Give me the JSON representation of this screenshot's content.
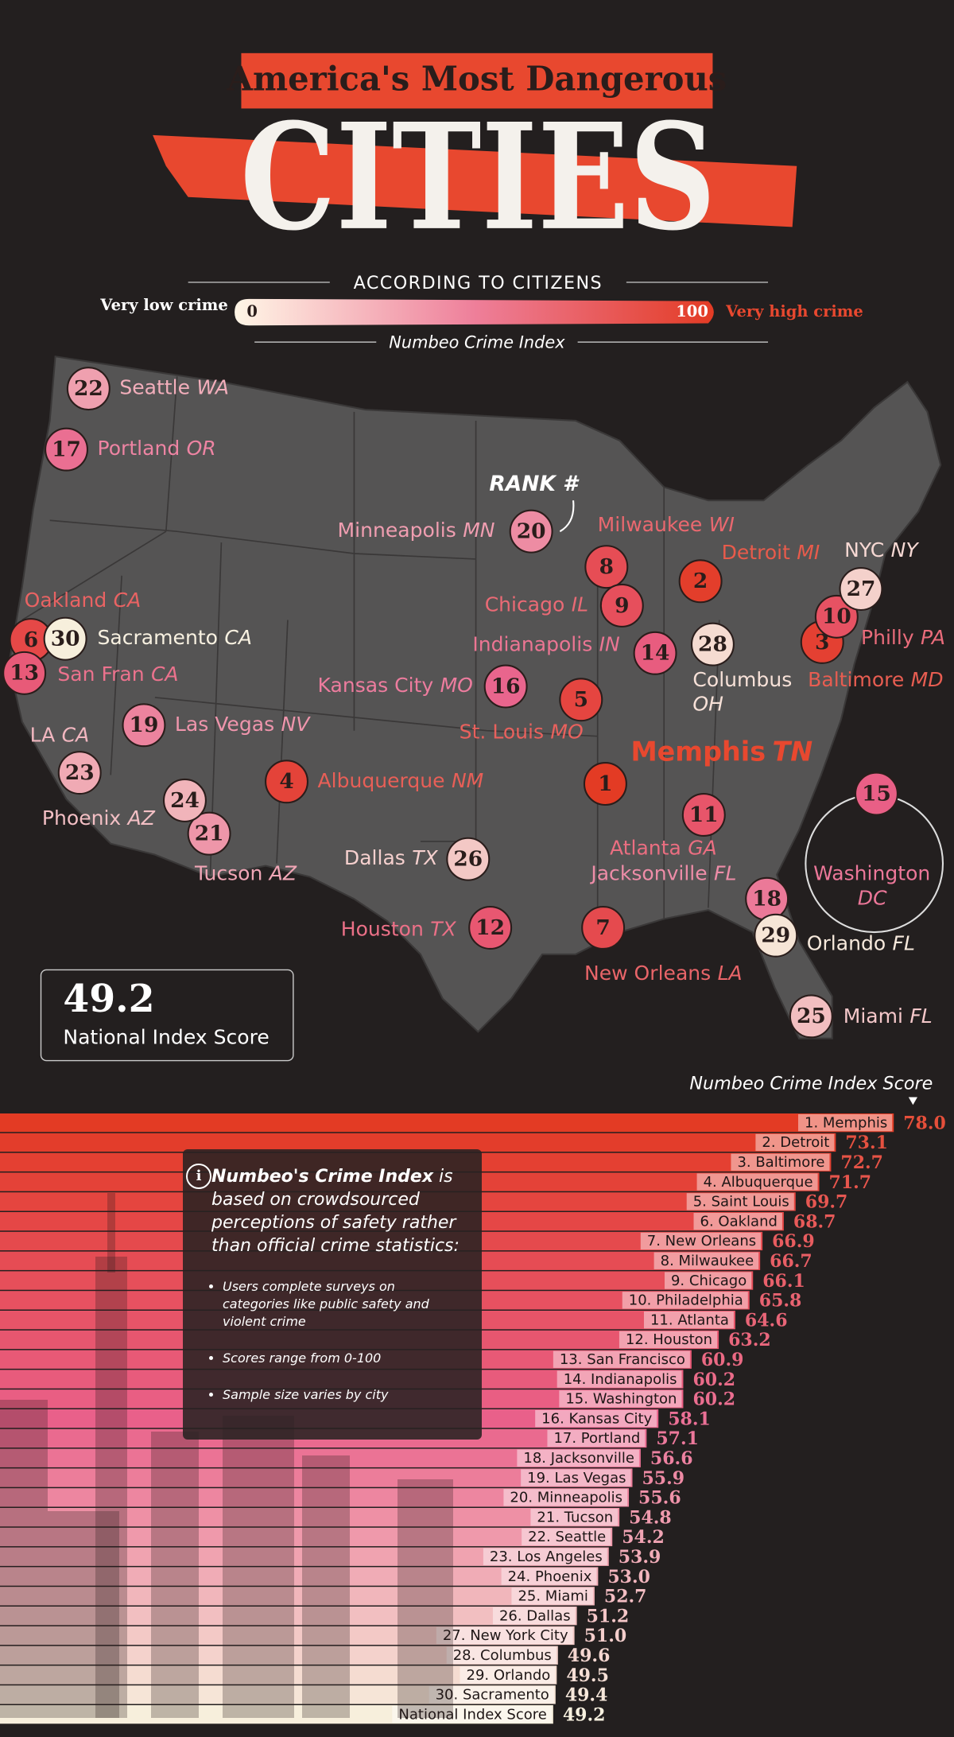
{
  "header": {
    "title": "America's Most Dangerous",
    "headline": "CITIES",
    "subtitle": "ACCORDING TO CITIZENS",
    "legend": {
      "low_label": "Very low crime",
      "min": 0,
      "max": 100,
      "high_label": "Very high crime",
      "caption": "Numbeo Crime Index"
    }
  },
  "map": {
    "rank_label": "RANK #",
    "cities": [
      {
        "rank": 1,
        "city": "Memphis",
        "state": "TN"
      },
      {
        "rank": 2,
        "city": "Detroit",
        "state": "MI"
      },
      {
        "rank": 3,
        "city": "Baltimore",
        "state": "MD"
      },
      {
        "rank": 4,
        "city": "Albuquerque",
        "state": "NM"
      },
      {
        "rank": 5,
        "city": "St. Louis",
        "state": "MO"
      },
      {
        "rank": 6,
        "city": "Oakland",
        "state": "CA"
      },
      {
        "rank": 7,
        "city": "New Orleans",
        "state": "LA"
      },
      {
        "rank": 8,
        "city": "Milwaukee",
        "state": "WI"
      },
      {
        "rank": 9,
        "city": "Chicago",
        "state": "IL"
      },
      {
        "rank": 10,
        "city": "Philly",
        "state": "PA"
      },
      {
        "rank": 11,
        "city": "Atlanta",
        "state": "GA"
      },
      {
        "rank": 12,
        "city": "Houston",
        "state": "TX"
      },
      {
        "rank": 13,
        "city": "San Fran",
        "state": "CA"
      },
      {
        "rank": 14,
        "city": "Indianapolis",
        "state": "IN"
      },
      {
        "rank": 15,
        "city": "Washington",
        "state": "DC"
      },
      {
        "rank": 16,
        "city": "Kansas City",
        "state": "MO"
      },
      {
        "rank": 17,
        "city": "Portland",
        "state": "OR"
      },
      {
        "rank": 18,
        "city": "Jacksonville",
        "state": "FL"
      },
      {
        "rank": 19,
        "city": "Las Vegas",
        "state": "NV"
      },
      {
        "rank": 20,
        "city": "Minneapolis",
        "state": "MN"
      },
      {
        "rank": 21,
        "city": "Tucson",
        "state": "AZ"
      },
      {
        "rank": 22,
        "city": "Seattle",
        "state": "WA"
      },
      {
        "rank": 23,
        "city": "LA",
        "state": "CA"
      },
      {
        "rank": 24,
        "city": "Phoenix",
        "state": "AZ"
      },
      {
        "rank": 25,
        "city": "Miami",
        "state": "FL"
      },
      {
        "rank": 26,
        "city": "Dallas",
        "state": "TX"
      },
      {
        "rank": 27,
        "city": "NYC",
        "state": "NY"
      },
      {
        "rank": 28,
        "city": "Columbus",
        "state": "OH"
      },
      {
        "rank": 29,
        "city": "Orlando",
        "state": "FL"
      },
      {
        "rank": 30,
        "city": "Sacramento",
        "state": "CA"
      }
    ]
  },
  "national": {
    "score": 49.2,
    "label": "National Index Score"
  },
  "note": {
    "title": "Numbeo's Crime Index",
    "text": " is based on crowdsourced perceptions of safety rather than official crime statistics:",
    "bullets": [
      "Users complete surveys on categories like public safety and violent crime",
      "Scores range from 0-100",
      "Sample size varies by city"
    ]
  },
  "chart_data": {
    "type": "hbar",
    "title": "Numbeo Crime Index Score",
    "categories": [
      "1. Memphis",
      "2. Detroit",
      "3. Baltimore",
      "4. Albuquerque",
      "5. Saint Louis",
      "6. Oakland",
      "7. New Orleans",
      "8. Milwaukee",
      "9. Chicago",
      "10. Philadelphia",
      "11. Atlanta",
      "12. Houston",
      "13. San Francisco",
      "14. Indianapolis",
      "15. Washington",
      "16. Kansas City",
      "17. Portland",
      "18. Jacksonville",
      "19. Las Vegas",
      "20. Minneapolis",
      "21. Tucson",
      "22. Seattle",
      "23. Los Angeles",
      "24. Phoenix",
      "25. Miami",
      "26. Dallas",
      "27. New York City",
      "28. Columbus",
      "29. Orlando",
      "30. Sacramento",
      "National Index Score"
    ],
    "values": [
      78.0,
      73.1,
      72.7,
      71.7,
      69.7,
      68.7,
      66.9,
      66.7,
      66.1,
      65.8,
      64.6,
      63.2,
      60.9,
      60.2,
      60.2,
      58.1,
      57.1,
      56.6,
      55.9,
      55.6,
      54.8,
      54.2,
      53.9,
      53.0,
      52.7,
      51.2,
      51.0,
      49.6,
      49.5,
      49.4,
      49.2
    ],
    "value_labels": [
      "78.0",
      "73.1",
      "72.7",
      "71.7",
      "69.7",
      "68.7",
      "66.9",
      "66.7",
      "66.1",
      "65.8",
      "64.6",
      "63.2",
      "60.9",
      "60.2",
      "60.2",
      "58.1",
      "57.1",
      "56.6",
      "55.9",
      "55.6",
      "54.8",
      "54.2",
      "53.9",
      "53.0",
      "52.7",
      "51.2",
      "51.0",
      "49.6",
      "49.5",
      "49.4",
      "49.2"
    ],
    "xlim": [
      0,
      80
    ],
    "color_scale": [
      "#e33b24",
      "#e9608a",
      "#f7efdc"
    ]
  }
}
